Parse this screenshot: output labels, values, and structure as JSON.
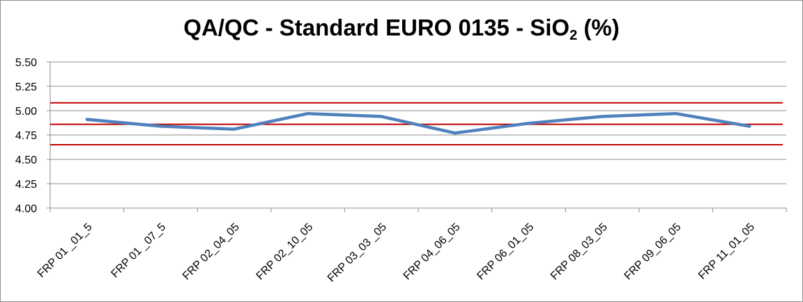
{
  "chart_data": {
    "type": "line",
    "title_main": "QA/QC - Standard EURO 0135 - SiO",
    "title_sub": "2",
    "title_end": " (%)",
    "categories": [
      "FRP 01 _01_5",
      "FRP 01 _07_5",
      "FRP 02_04_05",
      "FRP 02_10_05",
      "FRP 03_03 _05",
      "FRP 04_06_05",
      "FRP 06_01_05",
      "FRP 08_03_05",
      "FRP 09_06_05",
      "FRP 11_01_05"
    ],
    "series": [
      {
        "values": [
          4.91,
          4.84,
          4.81,
          4.97,
          4.94,
          4.77,
          4.87,
          4.94,
          4.97,
          4.84
        ],
        "color": "#4f81bd"
      }
    ],
    "reference_lines": [
      {
        "value": 5.08,
        "color": "#c00000"
      },
      {
        "value": 4.86,
        "color": "#c00000"
      },
      {
        "value": 4.65,
        "color": "#c00000"
      }
    ],
    "y_ticks": [
      "4.00",
      "4.25",
      "4.50",
      "4.75",
      "5.00",
      "5.25",
      "5.50"
    ],
    "ylim": [
      4.0,
      5.5
    ],
    "grid": true,
    "legend": "none"
  }
}
